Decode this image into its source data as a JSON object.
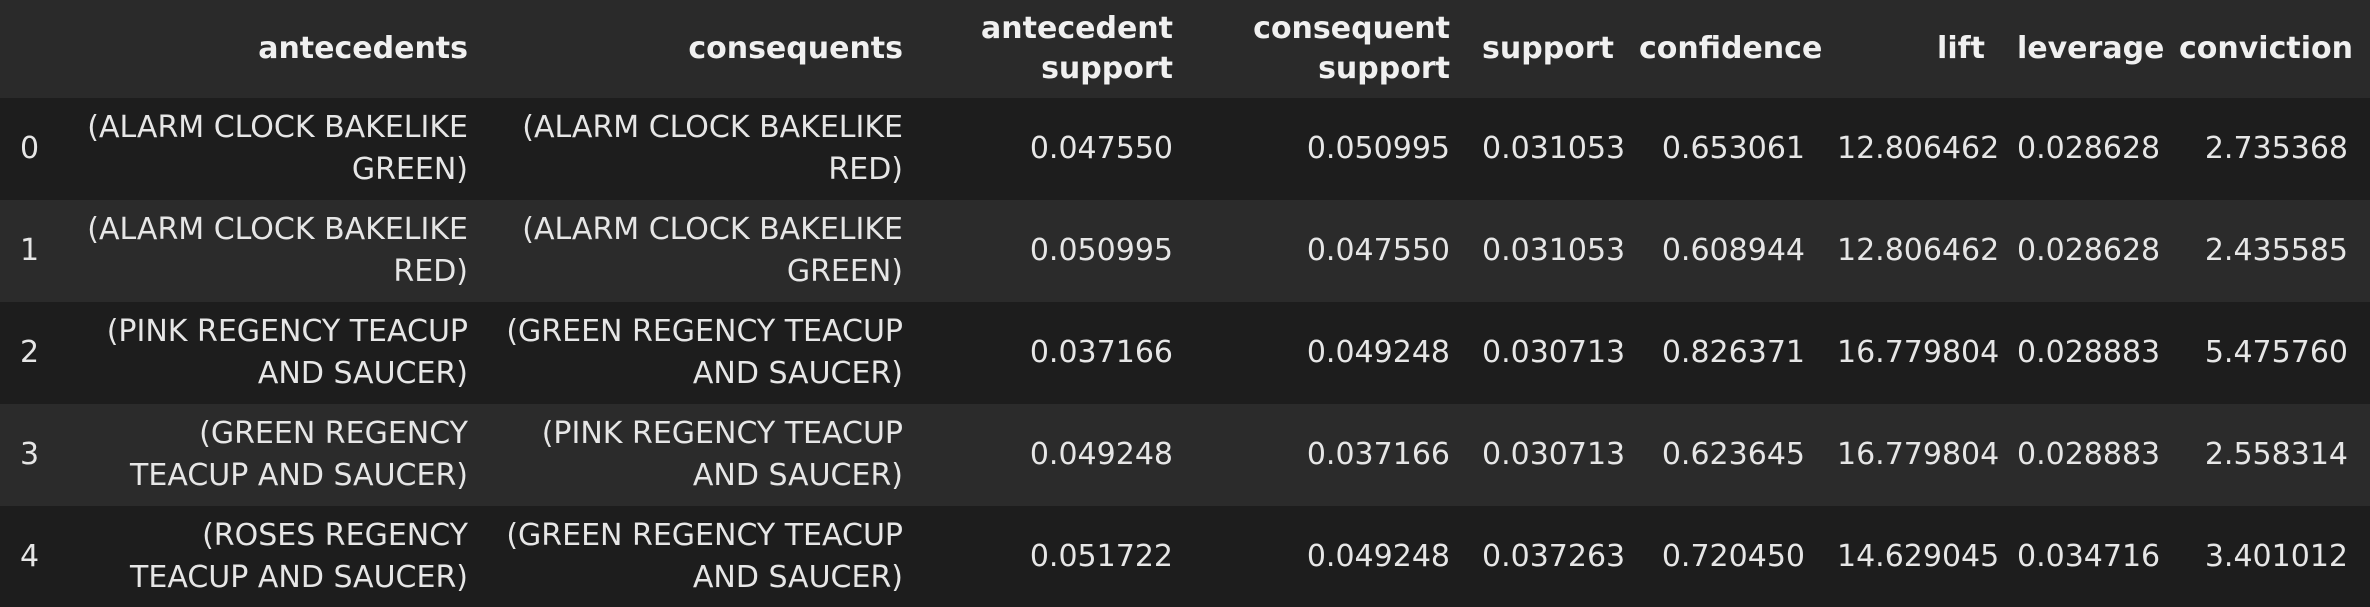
{
  "table": {
    "columns": [
      "",
      "antecedents",
      "consequents",
      "antecedent support",
      "consequent support",
      "support",
      "confidence",
      "lift",
      "leverage",
      "conviction"
    ],
    "rows": [
      [
        "0",
        "(ALARM CLOCK BAKELIKE GREEN)",
        "(ALARM CLOCK BAKELIKE RED)",
        "0.047550",
        "0.050995",
        "0.031053",
        "0.653061",
        "12.806462",
        "0.028628",
        "2.735368"
      ],
      [
        "1",
        "(ALARM CLOCK BAKELIKE RED)",
        "(ALARM CLOCK BAKELIKE GREEN)",
        "0.050995",
        "0.047550",
        "0.031053",
        "0.608944",
        "12.806462",
        "0.028628",
        "2.435585"
      ],
      [
        "2",
        "(PINK REGENCY TEACUP AND SAUCER)",
        "(GREEN REGENCY TEACUP AND SAUCER)",
        "0.037166",
        "0.049248",
        "0.030713",
        "0.826371",
        "16.779804",
        "0.028883",
        "5.475760"
      ],
      [
        "3",
        "(GREEN REGENCY TEACUP AND SAUCER)",
        "(PINK REGENCY TEACUP AND SAUCER)",
        "0.049248",
        "0.037166",
        "0.030713",
        "0.623645",
        "16.779804",
        "0.028883",
        "2.558314"
      ],
      [
        "4",
        "(ROSES REGENCY TEACUP AND SAUCER)",
        "(GREEN REGENCY TEACUP AND SAUCER)",
        "0.051722",
        "0.049248",
        "0.037263",
        "0.720450",
        "14.629045",
        "0.034716",
        "3.401012"
      ]
    ]
  },
  "colors": {
    "background": "#1e1e1e",
    "header_bg": "#2a2a2a",
    "row_odd": "#1d1d1d",
    "row_even": "#2b2b2b",
    "text": "#e6e6e6"
  }
}
